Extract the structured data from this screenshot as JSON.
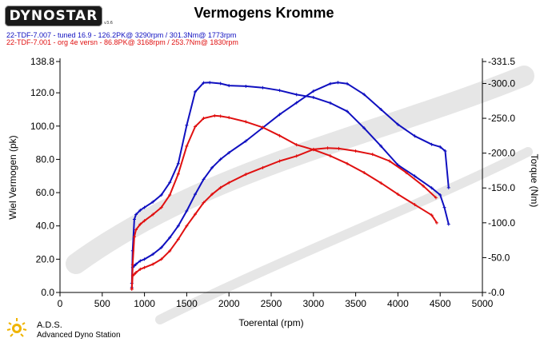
{
  "header": {
    "logo_text": "DYNOSTAR",
    "logo_small": "v3.6",
    "title": "Vermogens Kromme"
  },
  "legend": [
    {
      "text": "22-TDF-7.007 - tuned 16.9  - 126.2PK@ 3290rpm / 301.3Nm@ 1773rpm",
      "color": "#1010c0"
    },
    {
      "text": "22-TDF-7.001 - org 4e versn  - 86.8PK@ 3168rpm / 253.7Nm@ 1830rpm",
      "color": "#e01010"
    }
  ],
  "footer": {
    "name": "A.D.S.",
    "subtitle": "Advanced Dyno Station"
  },
  "watermark_color": "#e6e6e6",
  "chart_data": {
    "type": "line",
    "title": "Vermogens Kromme",
    "xlabel": "Toerental (rpm)",
    "ylabel": "Wiel Vermogen (pk)",
    "y2label": "Torque (Nm)",
    "xlim": [
      0,
      5000
    ],
    "ylim": [
      0,
      138.8
    ],
    "y2lim": [
      0,
      331.5
    ],
    "x_ticks": [
      "0",
      "500",
      "1000",
      "1500",
      "2000",
      "2500",
      "3000",
      "3500",
      "4000",
      "4500",
      "5000"
    ],
    "y_ticks": [
      "0.0",
      "20.0",
      "40.0",
      "60.0",
      "80.0",
      "100.0",
      "120.0",
      "138.8"
    ],
    "y2_ticks": [
      "0.0",
      "50.0",
      "100.0",
      "150.0",
      "200.0",
      "250.0",
      "300.0",
      "331.5"
    ],
    "grid": false,
    "series": [
      {
        "name": "22-TDF-7.007 - tuned 16.9",
        "quantity": "power",
        "axis": "left",
        "color": "#1010c0",
        "x": [
          850,
          860,
          880,
          900,
          950,
          1000,
          1100,
          1200,
          1300,
          1400,
          1500,
          1600,
          1700,
          1800,
          1900,
          2000,
          2200,
          2400,
          2600,
          2800,
          3000,
          3200,
          3290,
          3400,
          3600,
          3800,
          4000,
          4200,
          4400,
          4500,
          4560,
          4600
        ],
        "y": [
          3,
          15,
          16,
          17,
          19,
          20,
          23,
          27,
          33,
          40,
          49,
          59,
          68,
          75,
          80,
          84,
          91,
          99,
          107,
          114,
          121,
          125.5,
          126.2,
          125.5,
          119,
          110,
          101,
          94,
          89,
          87.5,
          85,
          63
        ]
      },
      {
        "name": "22-TDF-7.007 - tuned 16.9",
        "quantity": "torque",
        "axis": "right",
        "color": "#1010c0",
        "x": [
          850,
          860,
          880,
          900,
          950,
          1000,
          1100,
          1200,
          1300,
          1400,
          1500,
          1600,
          1700,
          1773,
          1900,
          2000,
          2200,
          2400,
          2600,
          2800,
          3000,
          3200,
          3400,
          3600,
          3800,
          4000,
          4200,
          4400,
          4500,
          4550,
          4600
        ],
        "y": [
          13,
          60,
          105,
          112,
          118,
          122,
          130,
          140,
          158,
          185,
          240,
          288,
          301,
          301.3,
          300,
          297,
          296,
          294,
          290,
          284,
          280,
          272,
          260,
          236,
          210,
          183,
          167,
          150,
          140,
          122,
          98
        ]
      },
      {
        "name": "22-TDF-7.001 - org 4e versn",
        "quantity": "power",
        "axis": "left",
        "color": "#e01010",
        "x": [
          850,
          860,
          880,
          900,
          950,
          1000,
          1100,
          1200,
          1300,
          1400,
          1500,
          1600,
          1700,
          1800,
          1900,
          2000,
          2200,
          2400,
          2600,
          2800,
          3000,
          3168,
          3300,
          3500,
          3700,
          3900,
          4100,
          4300,
          4450
        ],
        "y": [
          2,
          10,
          11,
          12,
          14,
          15,
          17,
          20,
          25,
          32,
          40,
          47,
          54,
          59,
          63,
          66,
          71,
          75,
          79,
          82,
          86,
          86.8,
          86.5,
          85,
          83,
          79,
          72,
          64,
          57
        ]
      },
      {
        "name": "22-TDF-7.001 - org 4e versn",
        "quantity": "torque",
        "axis": "right",
        "color": "#e01010",
        "x": [
          850,
          860,
          880,
          900,
          950,
          1000,
          1100,
          1200,
          1300,
          1400,
          1500,
          1600,
          1700,
          1830,
          1900,
          2000,
          2200,
          2400,
          2600,
          2800,
          3000,
          3200,
          3400,
          3600,
          3800,
          4000,
          4200,
          4400,
          4460
        ],
        "y": [
          5,
          40,
          80,
          90,
          98,
          103,
          112,
          122,
          140,
          170,
          210,
          238,
          250,
          253.7,
          253,
          251,
          245,
          237,
          225,
          212,
          205,
          196,
          185,
          172,
          157,
          141,
          126,
          111,
          100
        ]
      }
    ]
  }
}
